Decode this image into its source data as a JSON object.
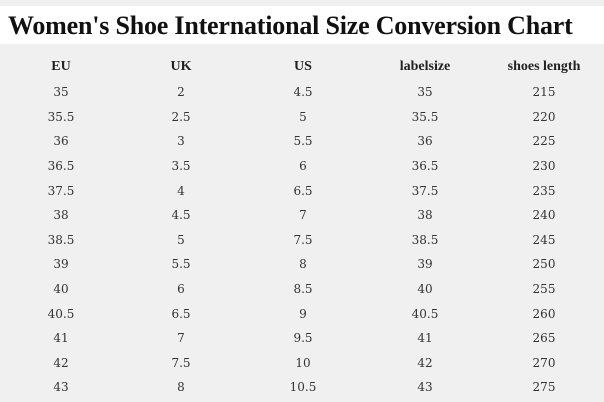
{
  "title": "Women's Shoe International Size Conversion Chart",
  "table": {
    "headers": [
      "EU",
      "UK",
      "US",
      "labelsize",
      "shoes length"
    ],
    "rows": [
      [
        "35",
        "2",
        "4.5",
        "35",
        "215"
      ],
      [
        "35.5",
        "2.5",
        "5",
        "35.5",
        "220"
      ],
      [
        "36",
        "3",
        "5.5",
        "36",
        "225"
      ],
      [
        "36.5",
        "3.5",
        "6",
        "36.5",
        "230"
      ],
      [
        "37.5",
        "4",
        "6.5",
        "37.5",
        "235"
      ],
      [
        "38",
        "4.5",
        "7",
        "38",
        "240"
      ],
      [
        "38.5",
        "5",
        "7.5",
        "38.5",
        "245"
      ],
      [
        "39",
        "5.5",
        "8",
        "39",
        "250"
      ],
      [
        "40",
        "6",
        "8.5",
        "40",
        "255"
      ],
      [
        "40.5",
        "6.5",
        "9",
        "40.5",
        "260"
      ],
      [
        "41",
        "7",
        "9.5",
        "41",
        "265"
      ],
      [
        "42",
        "7.5",
        "10",
        "42",
        "270"
      ],
      [
        "43",
        "8",
        "10.5",
        "43",
        "275"
      ]
    ]
  }
}
